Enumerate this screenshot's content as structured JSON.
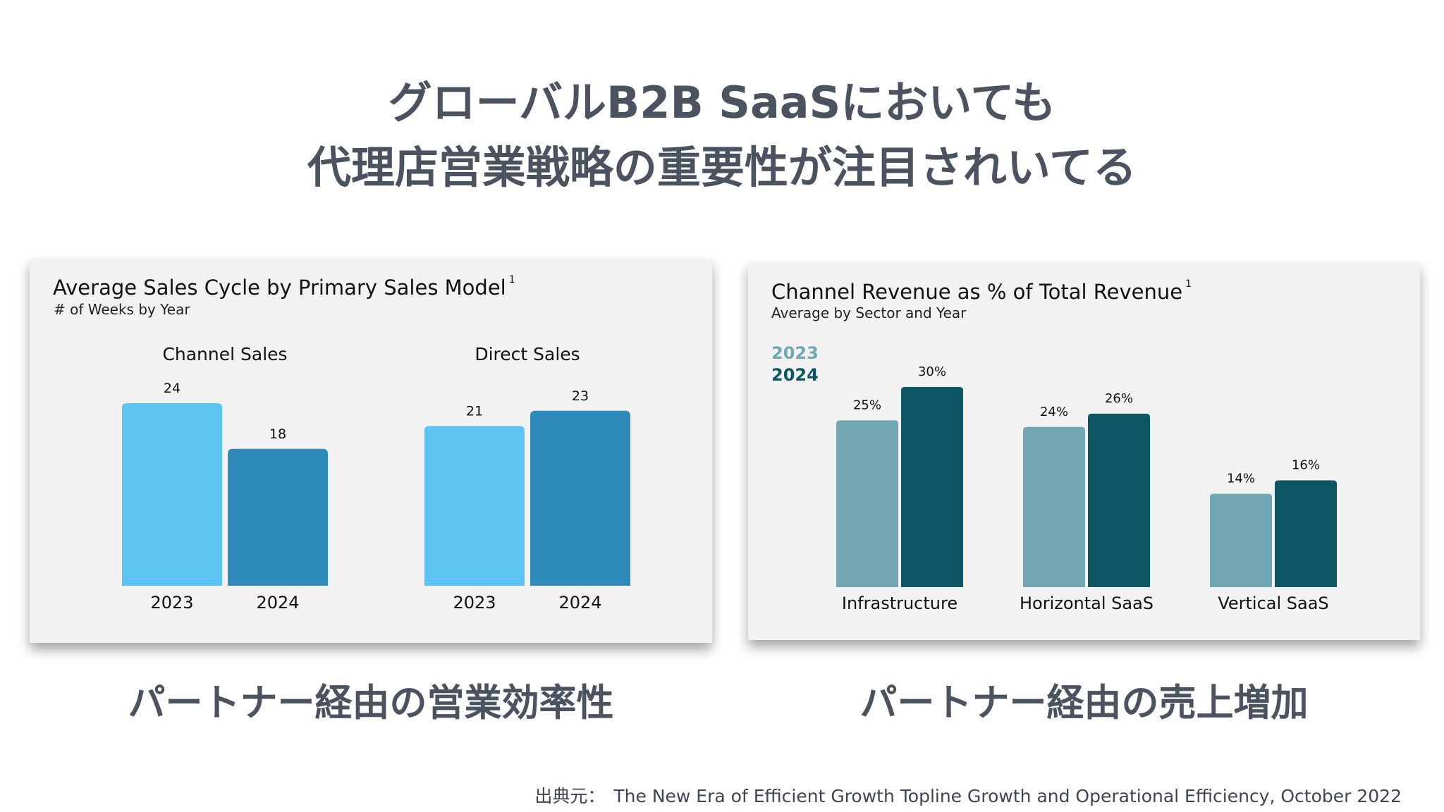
{
  "headline": {
    "line1": "グローバルB2B SaaSにおいても",
    "line2": "代理店営業戦略の重要性が注目されいてる"
  },
  "left_card": {
    "title": "Average Sales Cycle by Primary Sales Model",
    "footnote": "1",
    "subtitle": "# of Weeks by Year",
    "caption": "パートナー経由の営業効率性"
  },
  "right_card": {
    "title": "Channel Revenue as % of Total Revenue",
    "footnote": "1",
    "subtitle": "Average by Sector and Year",
    "caption": "パートナー経由の売上増加"
  },
  "source": {
    "label": "出典元：",
    "text": "The New Era of Efficient Growth Topline Growth and Operational Efficiency, October 2022"
  },
  "chart_data": [
    {
      "type": "bar",
      "title": "Average Sales Cycle by Primary Sales Model",
      "subtitle": "# of Weeks by Year",
      "groups": [
        {
          "name": "Channel Sales",
          "categories": [
            "2023",
            "2024"
          ],
          "values": [
            24,
            18
          ],
          "labels": [
            "24",
            "18"
          ]
        },
        {
          "name": "Direct Sales",
          "categories": [
            "2023",
            "2024"
          ],
          "values": [
            21,
            23
          ],
          "labels": [
            "21",
            "23"
          ]
        }
      ],
      "colors": [
        "#5ec2f3",
        "#2e8bb9"
      ],
      "ylim": [
        0,
        24
      ],
      "grid": false
    },
    {
      "type": "bar",
      "title": "Channel Revenue as % of Total Revenue",
      "subtitle": "Average by Sector and Year",
      "categories": [
        "Infrastructure",
        "Horizontal SaaS",
        "Vertical SaaS"
      ],
      "series": [
        {
          "name": "2023",
          "values": [
            25,
            24,
            14
          ],
          "labels": [
            "25%",
            "24%",
            "14%"
          ],
          "color": "#72a6b3"
        },
        {
          "name": "2024",
          "values": [
            30,
            26,
            16
          ],
          "labels": [
            "30%",
            "26%",
            "16%"
          ],
          "color": "#0d5664"
        }
      ],
      "legend": "top-left",
      "ylim": [
        0,
        30
      ],
      "grid": false
    }
  ]
}
